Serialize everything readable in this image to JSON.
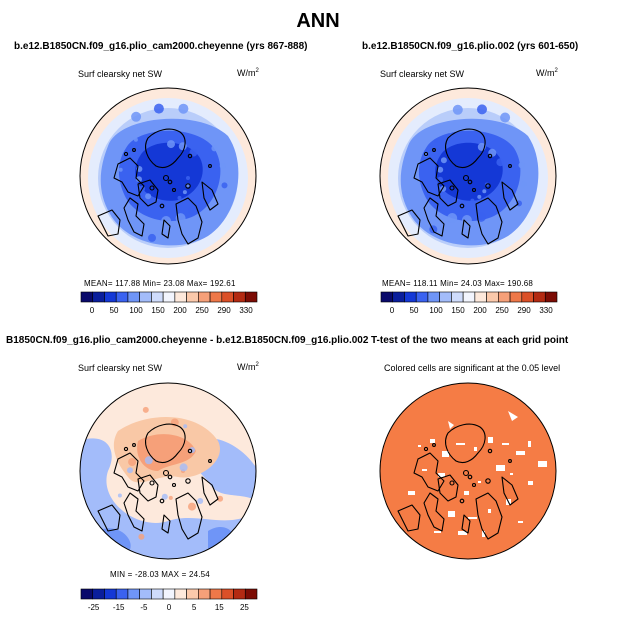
{
  "title": "ANN",
  "panels": [
    {
      "id": "p1",
      "title": "b.e12.B1850CN.f09_g16.plio_cam2000.cheyenne (yrs 867-888)",
      "field_label": "Surf clearsky net SW",
      "units": "W/m",
      "units_exp": "2",
      "stats_text": "MEAN= 117.88   Min=   23.08   Max=  192.61"
    },
    {
      "id": "p2",
      "title": "b.e12.B1850CN.f09_g16.plio.002 (yrs 601-650)",
      "field_label": "Surf clearsky net SW",
      "units": "W/m",
      "units_exp": "2",
      "stats_text": "MEAN= 118.11   Min=   24.03   Max=  190.68"
    },
    {
      "id": "p3",
      "title": "B1850CN.f09_g16.plio_cam2000.cheyenne - b.e12.B1850CN.f09_g16.plio.002",
      "field_label": "Surf clearsky net SW",
      "units": "W/m",
      "units_exp": "2",
      "stats_text": "MIN = -28.03 MAX =  24.54"
    },
    {
      "id": "p4",
      "title": "T-test of the two means at each grid point",
      "field_label": "Colored cells are significant at the 0.05 level"
    }
  ],
  "colorbars": {
    "absolute": {
      "colors": [
        "#0a0a6b",
        "#0a1e9c",
        "#1438d6",
        "#3a62f0",
        "#6f95f7",
        "#a3bcfa",
        "#cfdcfc",
        "#f2f5fe",
        "#fde9dc",
        "#fbc9ab",
        "#f6a079",
        "#ee7849",
        "#db5028",
        "#b32a12",
        "#7c0c04"
      ],
      "labels": [
        "0",
        "50",
        "100",
        "150",
        "200",
        "250",
        "290",
        "330"
      ]
    },
    "difference": {
      "colors": [
        "#0a0a6b",
        "#0a1e9c",
        "#1438d6",
        "#3a62f0",
        "#6f95f7",
        "#a3bcfa",
        "#cfdcfc",
        "#f2f5fe",
        "#fde9dc",
        "#fbc9ab",
        "#f6a079",
        "#ee7849",
        "#db5028",
        "#b32a12",
        "#7c0c04"
      ],
      "labels": [
        "-25",
        "-15",
        "-5",
        "0",
        "5",
        "15",
        "25"
      ]
    }
  },
  "map_colors": {
    "ocean_mid": "#b9cdfa",
    "ocean_edge": "#e4ecfd",
    "ring": "#fde9dc",
    "ice_deep": "#1438d6",
    "ice_mid": "#3a62f0",
    "ice_light": "#6f95f7",
    "diff_pos": "#f9c8a6",
    "diff_pos_strong": "#f6a079",
    "diff_neg": "#a3bcfa",
    "diff_neg_strong": "#6f95f7",
    "sig": "#f57c45"
  },
  "chart_data": [
    {
      "type": "heatmap",
      "projection": "polar stereographic (north)",
      "title": "b.e12.B1850CN.f09_g16.plio_cam2000.cheyenne (yrs 867-888)",
      "variable": "Surf clearsky net SW",
      "units": "W/m^2",
      "mean": 117.88,
      "min": 23.08,
      "max": 192.61,
      "contour_levels": [
        0,
        25,
        50,
        75,
        100,
        125,
        150,
        175,
        200,
        225,
        250,
        270,
        290,
        310,
        330
      ]
    },
    {
      "type": "heatmap",
      "projection": "polar stereographic (north)",
      "title": "b.e12.B1850CN.f09_g16.plio.002 (yrs 601-650)",
      "variable": "Surf clearsky net SW",
      "units": "W/m^2",
      "mean": 118.11,
      "min": 24.03,
      "max": 190.68,
      "contour_levels": [
        0,
        25,
        50,
        75,
        100,
        125,
        150,
        175,
        200,
        225,
        250,
        270,
        290,
        310,
        330
      ]
    },
    {
      "type": "heatmap",
      "projection": "polar stereographic (north)",
      "title": "B1850CN.f09_g16.plio_cam2000.cheyenne - b.e12.B1850CN.f09_g16.plio.002",
      "variable": "Surf clearsky net SW (difference)",
      "units": "W/m^2",
      "min": -28.03,
      "max": 24.54,
      "contour_levels": [
        -30,
        -25,
        -20,
        -15,
        -10,
        -5,
        -2,
        0,
        2,
        5,
        10,
        15,
        20,
        25,
        30
      ]
    },
    {
      "type": "heatmap",
      "projection": "polar stereographic (north)",
      "title": "T-test of the two means at each grid point",
      "annotation": "Colored cells are significant at the 0.05 level",
      "significance_level": 0.05
    }
  ]
}
